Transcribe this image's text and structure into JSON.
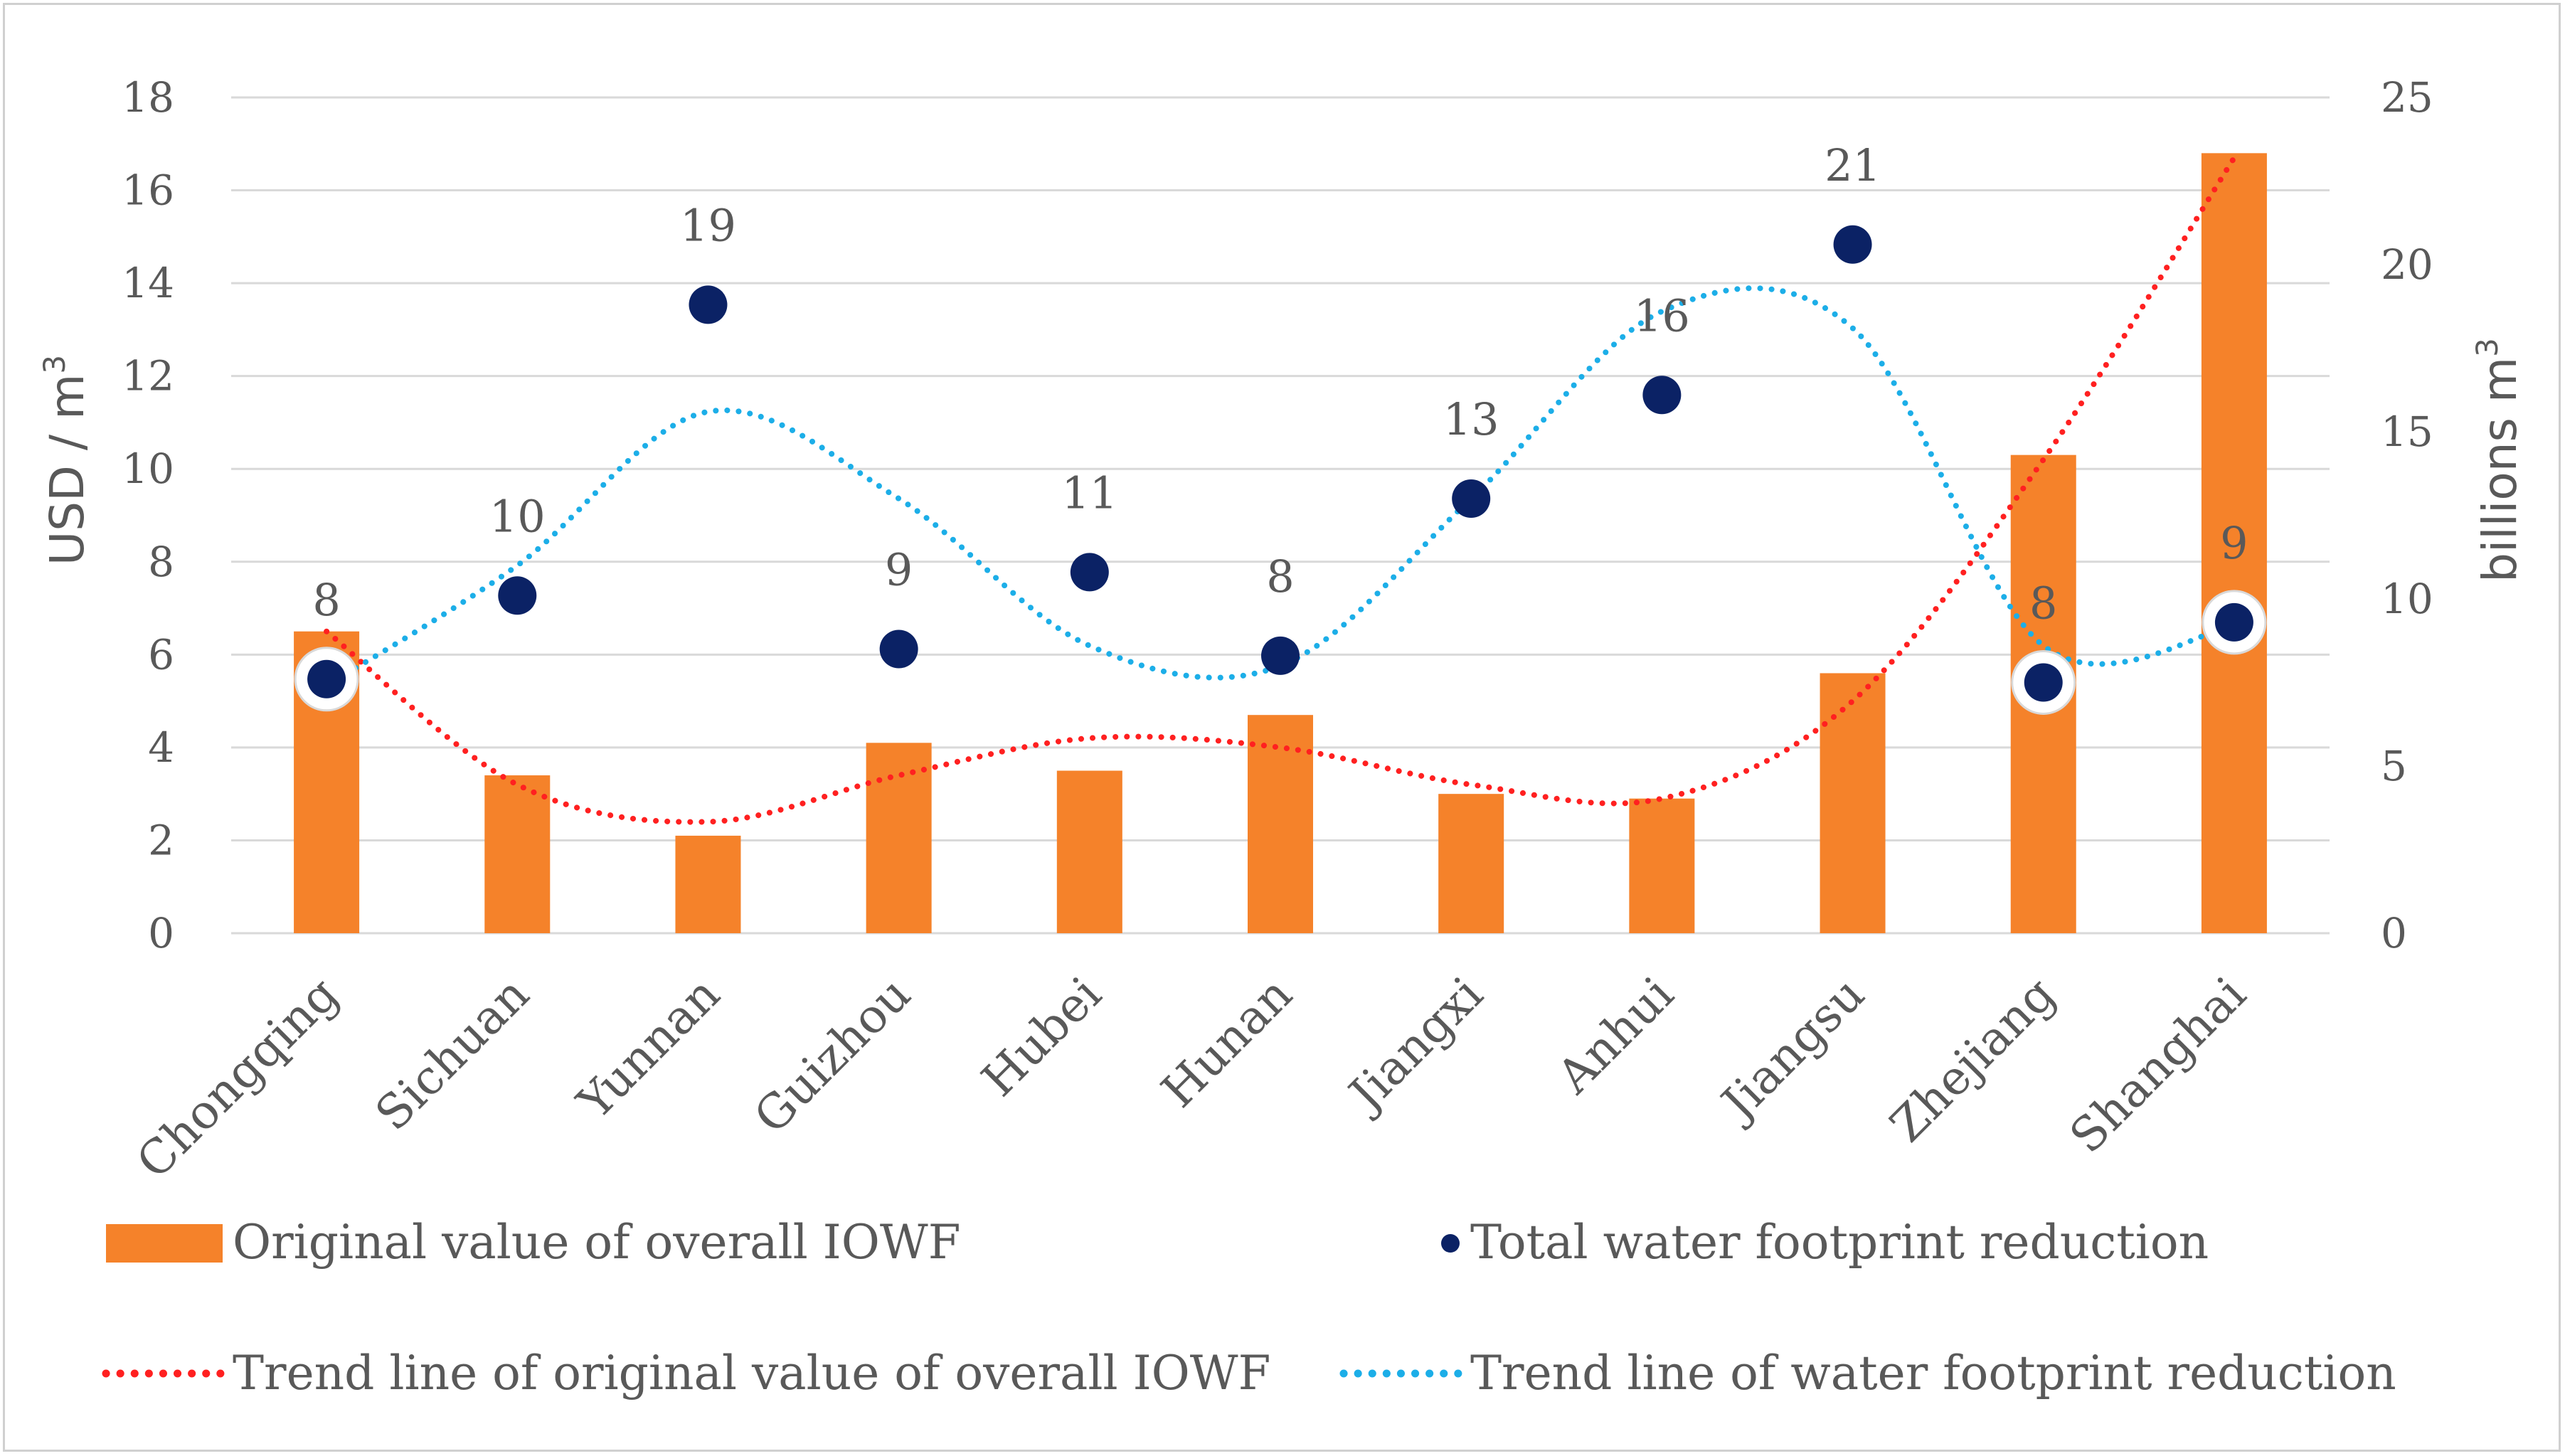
{
  "chart_data": {
    "type": "bar",
    "title": "",
    "categories": [
      "Chongqing",
      "Sichuan",
      "Yunnan",
      "Guizhou",
      "Hubei",
      "Hunan",
      "Jiangxi",
      "Anhui",
      "Jiangsu",
      "Zhejiang",
      "Shanghai"
    ],
    "left_axis": {
      "label": "USD / m",
      "label_sup": "3",
      "ylim": [
        0,
        18
      ],
      "ticks": [
        0,
        2,
        4,
        6,
        8,
        10,
        12,
        14,
        16,
        18
      ]
    },
    "right_axis": {
      "label": "billions m",
      "label_sup": "3",
      "ylim": [
        0,
        25
      ],
      "ticks": [
        0,
        5,
        10,
        15,
        20,
        25
      ]
    },
    "series": [
      {
        "name": "Original value of overall  IOWF",
        "kind": "bar",
        "axis": "left",
        "color": "#F5822A",
        "values": [
          6.5,
          3.4,
          2.1,
          4.1,
          3.5,
          4.7,
          3.0,
          2.9,
          5.6,
          10.3,
          16.8
        ]
      },
      {
        "name": "Total  water footprint reduction",
        "kind": "scatter",
        "axis": "right",
        "color": "#0B2265",
        "values": [
          7.6,
          10.1,
          18.8,
          8.5,
          10.8,
          8.3,
          13.0,
          16.1,
          20.6,
          7.5,
          9.3
        ],
        "labels": [
          "8",
          "10",
          "19",
          "9",
          "11",
          "8",
          "13",
          "16",
          "21",
          "8",
          "9"
        ],
        "highlighted": [
          0,
          9,
          10
        ]
      },
      {
        "name": "Trend line of original value of overall IOWF",
        "kind": "trendline",
        "axis": "left",
        "color": "#FF2020",
        "values": [
          6.5,
          3.2,
          2.4,
          3.4,
          4.2,
          4.0,
          3.2,
          2.9,
          5.0,
          10.2,
          16.7
        ]
      },
      {
        "name": "Trend line of water footprint reduction",
        "kind": "trendline",
        "axis": "right",
        "color": "#1CAEE8",
        "values": [
          7.4,
          11.0,
          15.6,
          13.0,
          8.6,
          8.0,
          13.0,
          18.6,
          18.1,
          8.6,
          9.2
        ]
      }
    ],
    "legend": {
      "position": "bottom",
      "entries": [
        "Original value of overall  IOWF",
        "Total  water footprint reduction",
        "Trend line of original value of overall IOWF",
        "Trend line of water footprint reduction"
      ]
    }
  }
}
